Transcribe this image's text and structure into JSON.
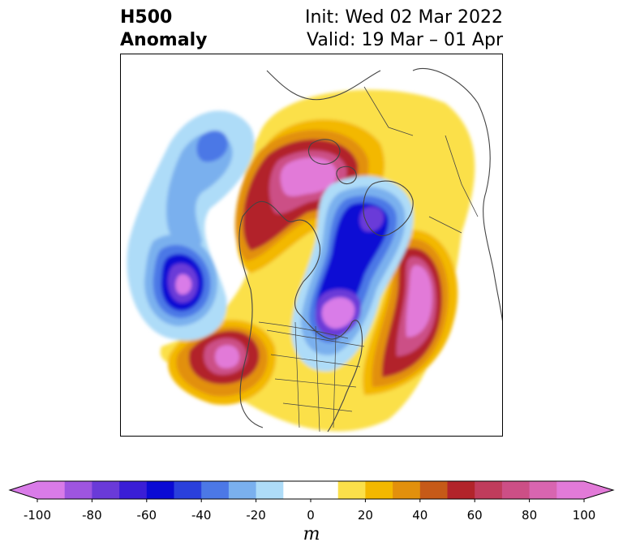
{
  "title": {
    "left_line1": "H500",
    "left_line2": "Anomaly",
    "right_line1": "Init: Wed 02 Mar 2022",
    "right_line2": "Valid: 19 Mar – 01 Apr"
  },
  "colorbar": {
    "unit": "m",
    "min": -100,
    "max": 100,
    "extend": "both",
    "ticks": [
      "-100",
      "-80",
      "-60",
      "-40",
      "-20",
      "0",
      "20",
      "40",
      "60",
      "80",
      "100"
    ],
    "tick_values": [
      -100,
      -80,
      -60,
      -40,
      -20,
      0,
      20,
      40,
      60,
      80,
      100
    ],
    "levels": [
      -100,
      -90,
      -80,
      -70,
      -60,
      -50,
      -40,
      -30,
      -20,
      -10,
      10,
      20,
      30,
      40,
      50,
      60,
      70,
      80,
      90,
      100
    ],
    "colors": [
      "#d97be8",
      "#9e55e0",
      "#6a3ad8",
      "#3a1ed6",
      "#0a0ad4",
      "#2a40dc",
      "#4c78e6",
      "#7ab0ee",
      "#aedcf8",
      "#ffffff",
      "#fbe04a",
      "#f3b800",
      "#e2900c",
      "#c65a18",
      "#b2242a",
      "#c03c5c",
      "#cc4f86",
      "#d865b0",
      "#e27ad8"
    ],
    "under_color": "#d97be8",
    "over_color": "#e27ad8"
  },
  "map": {
    "projection": "polar-stereographic",
    "features": [
      "coastlines",
      "country-borders",
      "us-state-borders"
    ]
  }
}
